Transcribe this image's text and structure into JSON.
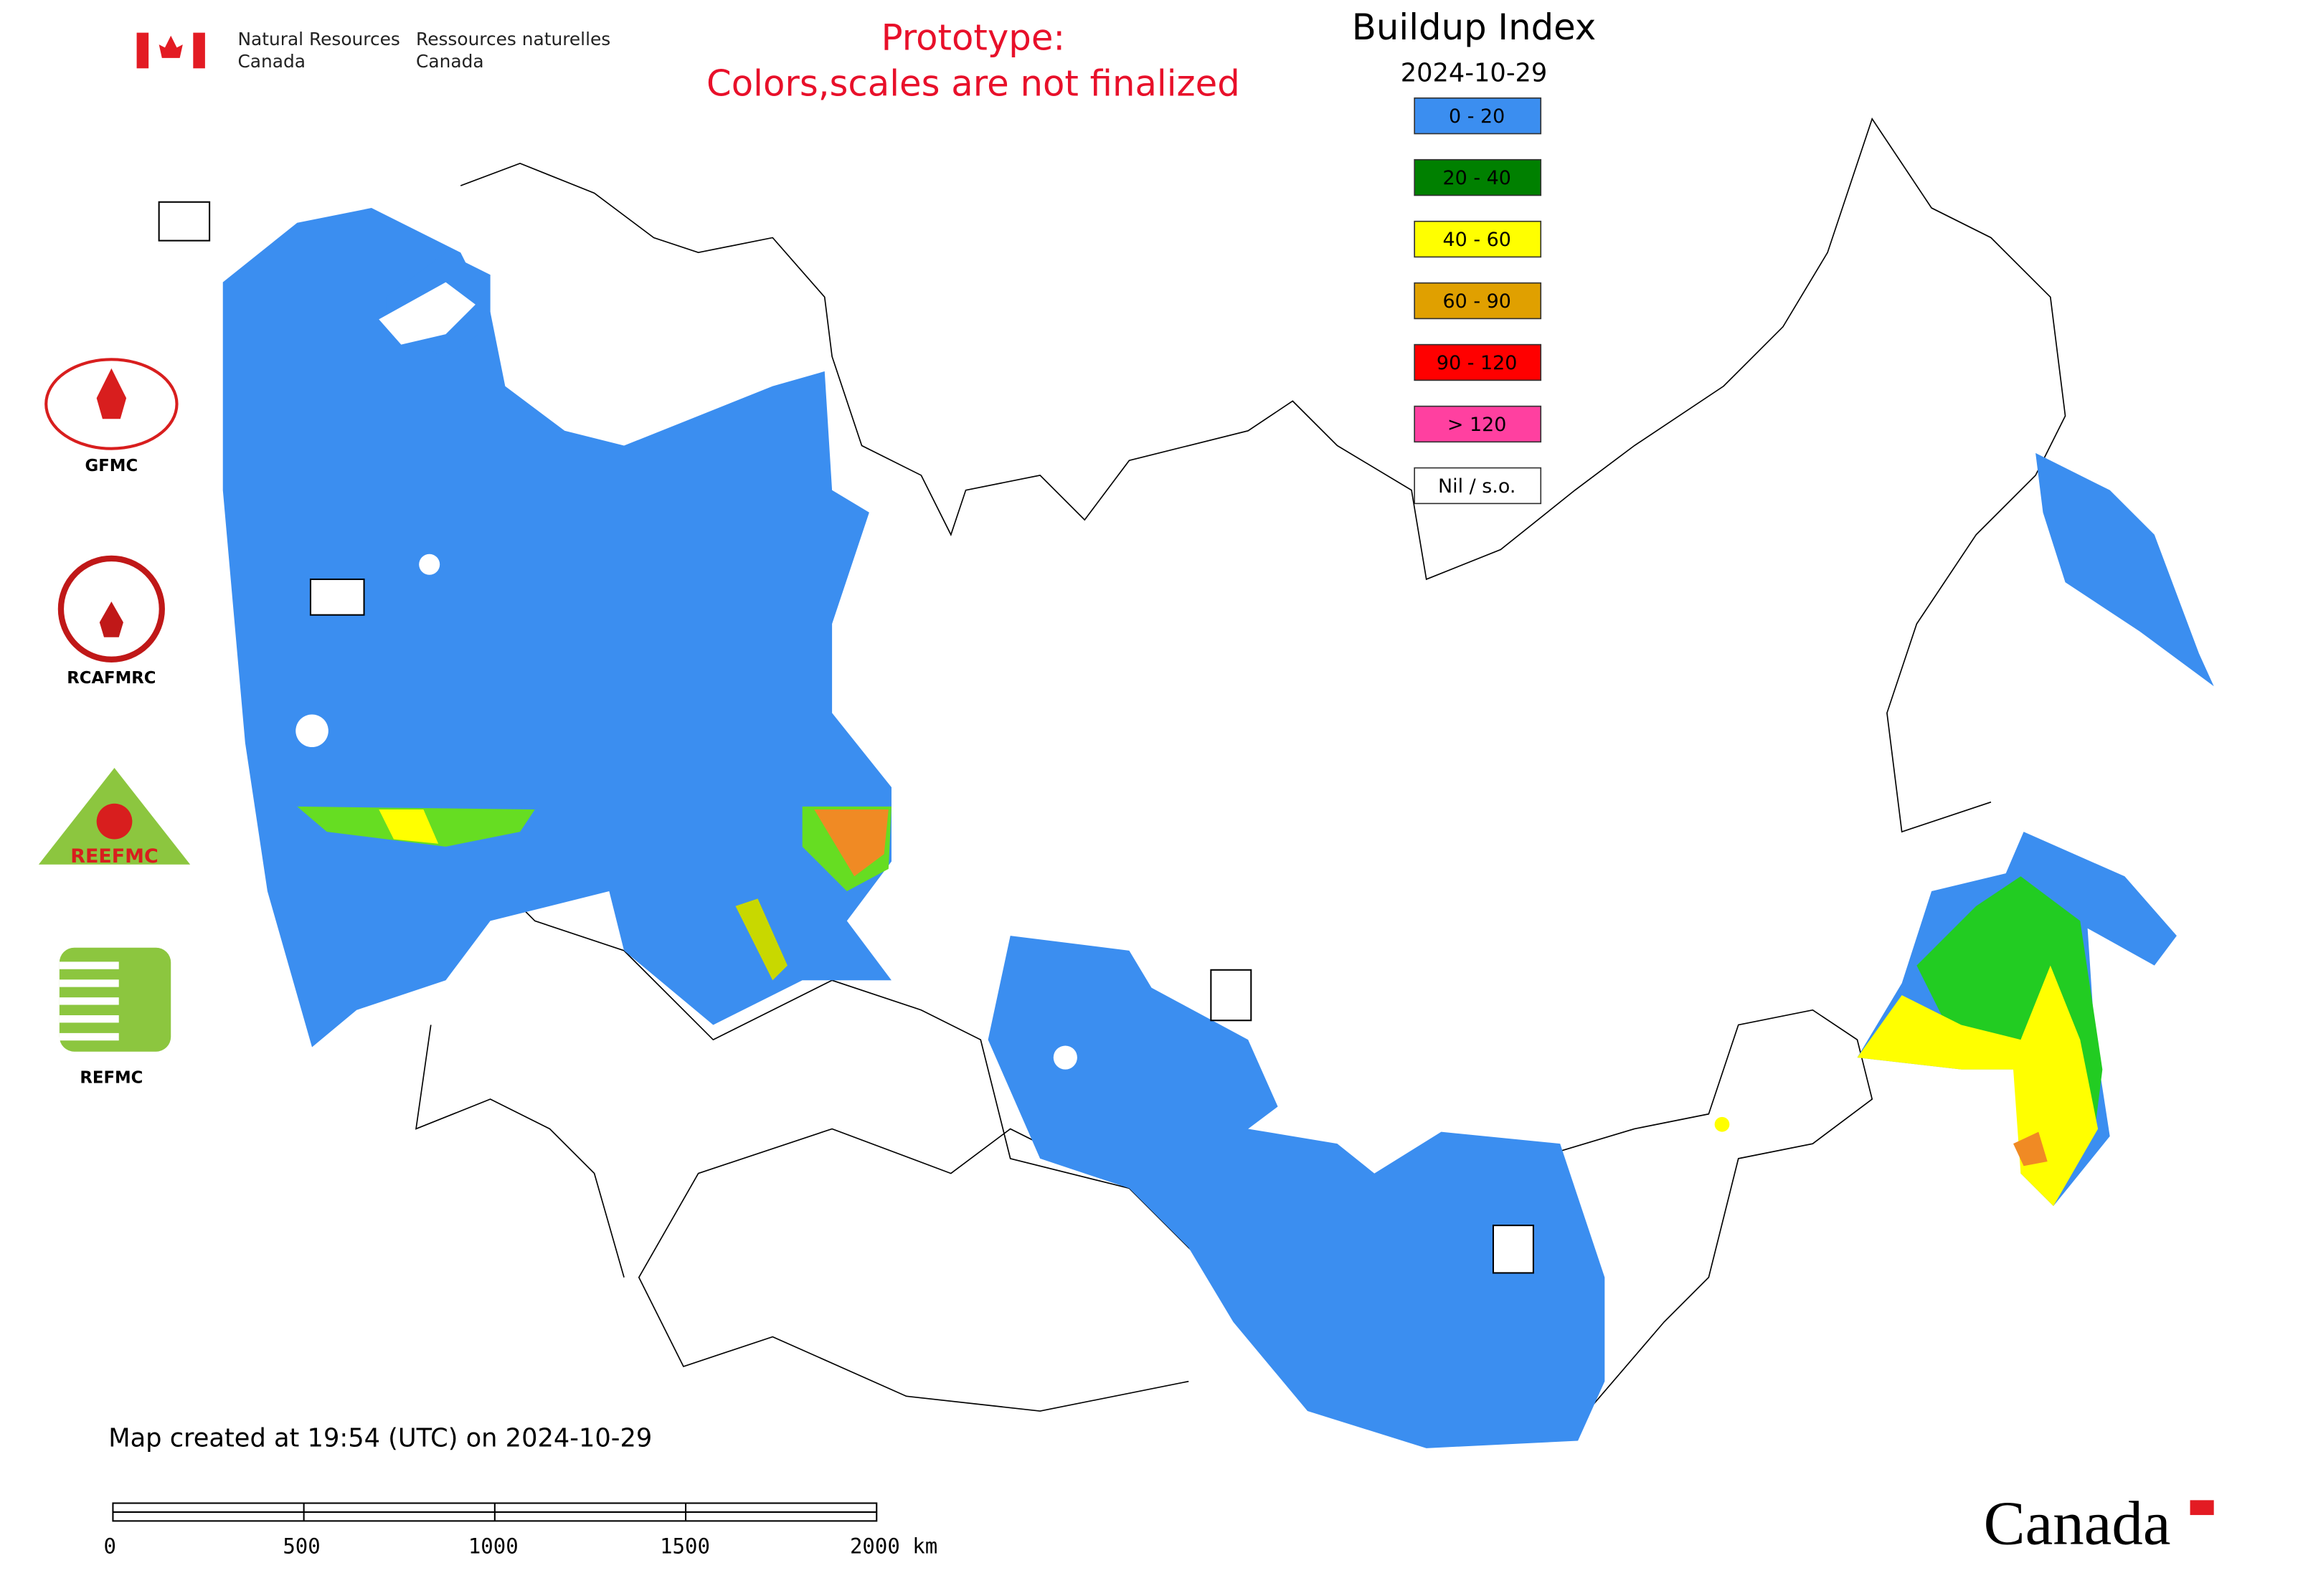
{
  "header": {
    "agency_en": [
      "Natural Resources",
      "Canada"
    ],
    "agency_fr": [
      "Ressources naturelles",
      "Canada"
    ]
  },
  "notice": [
    "Prototype:",
    "Colors,scales are not finalized"
  ],
  "map": {
    "title": "Buildup Index",
    "date": "2024-10-29",
    "legend": [
      {
        "label": "0 - 20",
        "color": "#3b8ef0"
      },
      {
        "label": "20 - 40",
        "color": "#008000"
      },
      {
        "label": "40 - 60",
        "color": "#ffff00"
      },
      {
        "label": "60 - 90",
        "color": "#e0a000"
      },
      {
        "label": "90 - 120",
        "color": "#ff0000"
      },
      {
        "label": "> 120",
        "color": "#ff40a0"
      },
      {
        "label": "Nil / s.o.",
        "color": "#ffffff"
      }
    ],
    "created": "Map created at 19:54 (UTC) on 2024-10-29",
    "scale_labels": [
      "0",
      "500",
      "1000",
      "1500",
      "2000 km"
    ]
  },
  "logos": [
    "GFMC",
    "RCAFMRC",
    "REEFMC",
    "REFMC"
  ],
  "wordmark": "Canada"
}
